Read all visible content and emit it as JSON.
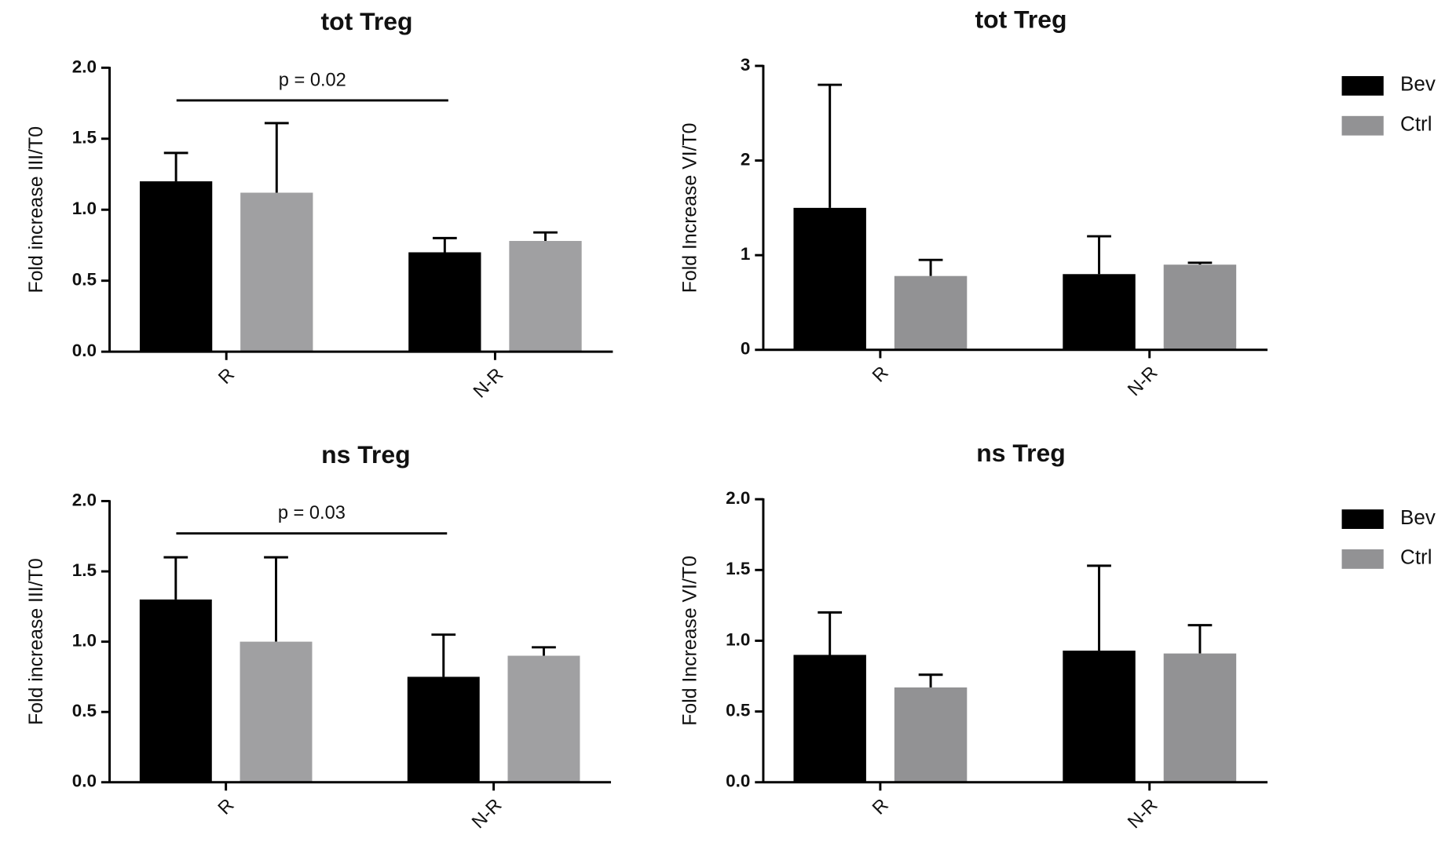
{
  "chart_data": [
    {
      "type": "bar",
      "title": "tot Treg",
      "ylabel": "Fold increase III/T0",
      "categories": [
        "R",
        "N-R"
      ],
      "series": [
        {
          "color": "#000000",
          "values": [
            1.2,
            0.7
          ],
          "errors": [
            0.2,
            0.1
          ]
        },
        {
          "color": "#a0a0a2",
          "values": [
            1.12,
            0.78
          ],
          "errors": [
            0.49,
            0.06
          ]
        }
      ],
      "ylim": [
        0,
        2
      ],
      "yticks": [
        {
          "value": 0,
          "label": "0.0"
        },
        {
          "value": 0.5,
          "label": "0.5"
        },
        {
          "value": 1,
          "label": "1.0"
        },
        {
          "value": 1.5,
          "label": "1.5"
        },
        {
          "value": 2,
          "label": "2.0"
        }
      ],
      "annotation": "p = 0.02",
      "legend": false
    },
    {
      "type": "bar",
      "title": "tot Treg",
      "ylabel": "Fold Increase VI/T0",
      "categories": [
        "R",
        "N-R"
      ],
      "series": [
        {
          "name": "Bev",
          "color": "#000000",
          "values": [
            1.5,
            0.8
          ],
          "errors": [
            1.3,
            0.4
          ]
        },
        {
          "name": "Ctrl",
          "color": "#929294",
          "values": [
            0.78,
            0.9
          ],
          "errors": [
            0.17,
            0.02
          ]
        }
      ],
      "ylim": [
        0,
        3
      ],
      "yticks": [
        0,
        1,
        2,
        3
      ],
      "legend": true
    },
    {
      "type": "bar",
      "title": "ns Treg",
      "ylabel": "Fold increase III/T0",
      "categories": [
        "R",
        "N-R"
      ],
      "series": [
        {
          "color": "#000000",
          "values": [
            1.3,
            0.75
          ],
          "errors": [
            0.3,
            0.3
          ]
        },
        {
          "color": "#a0a0a2",
          "values": [
            1.0,
            0.9
          ],
          "errors": [
            0.6,
            0.06
          ]
        }
      ],
      "ylim": [
        0,
        2
      ],
      "yticks": [
        {
          "value": 0,
          "label": "0.0"
        },
        {
          "value": 0.5,
          "label": "0.5"
        },
        {
          "value": 1,
          "label": "1.0"
        },
        {
          "value": 1.5,
          "label": "1.5"
        },
        {
          "value": 2,
          "label": "2.0"
        }
      ],
      "annotation": "p = 0.03",
      "legend": false
    },
    {
      "type": "bar",
      "title": "ns Treg",
      "ylabel": "Fold Increase VI/T0",
      "categories": [
        "R",
        "N-R"
      ],
      "series": [
        {
          "name": "Bev",
          "color": "#000000",
          "values": [
            0.9,
            0.93
          ],
          "errors": [
            0.3,
            0.6
          ]
        },
        {
          "name": "Ctrl",
          "color": "#929294",
          "values": [
            0.67,
            0.91
          ],
          "errors": [
            0.09,
            0.2
          ]
        }
      ],
      "ylim": [
        0,
        2
      ],
      "yticks": [
        {
          "value": 0,
          "label": "0.0"
        },
        {
          "value": 0.5,
          "label": "0.5"
        },
        {
          "value": 1,
          "label": "1.0"
        },
        {
          "value": 1.5,
          "label": "1.5"
        },
        {
          "value": 2,
          "label": "2.0"
        }
      ],
      "legend": true
    }
  ]
}
